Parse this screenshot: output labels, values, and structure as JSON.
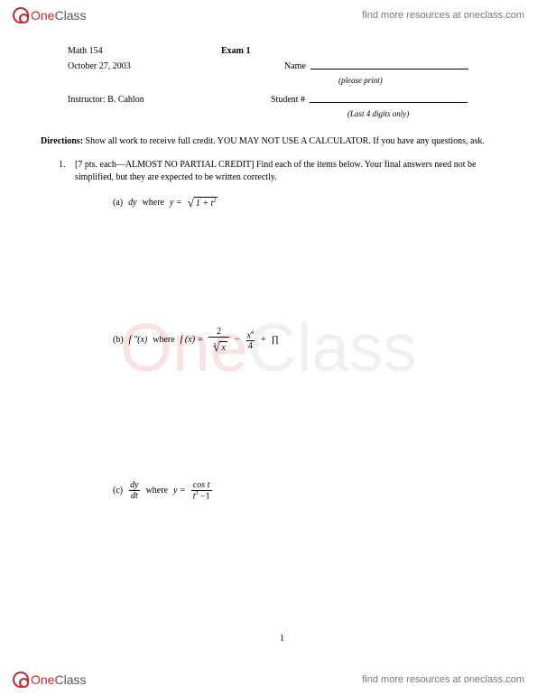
{
  "brand": {
    "one": "One",
    "class": "Class"
  },
  "resourcesLink": "find more resources at oneclass.com",
  "watermark": {
    "one": "One",
    "class": "Class"
  },
  "course": "Math 154",
  "examTitle": "Exam 1",
  "date": "October 27, 2003",
  "nameLabel": "Name",
  "pleasePrint": "(please print)",
  "instructor": "Instructor: B. Cahlon",
  "studentNumLabel": "Student #",
  "lastDigits": "(Last 4 digits only)",
  "directionsLabel": "Directions:",
  "directionsText": " Show all work to receive full credit. YOU MAY NOT USE A CALCULATOR. If you have any questions, ask.",
  "q1num": "1.",
  "q1text": "[7 pts. each—ALMOST NO PARTIAL CREDIT] Find each of the items below. Your final answers need not be simplified, but they are expected to be written correctly.",
  "partA": {
    "label": "(a)",
    "lhs": "dy",
    "where": "where",
    "eq": "y =",
    "radicand": "1 + t",
    "exp": "2"
  },
  "partB": {
    "label": "(b)",
    "lhs": "f ″(x)",
    "where": "where",
    "eq": "f (x) =",
    "frac1num": "2",
    "rootIdx": "3",
    "rootOf": "x",
    "minus": "−",
    "frac2numBase": "x",
    "frac2numExp": "4",
    "frac2den": "4",
    "plus": "+",
    "pi": "∏"
  },
  "partC": {
    "label": "(c)",
    "dyNum": "dy",
    "dyDen": "dt",
    "where": "where",
    "eq": "y =",
    "topFrac": "cos t",
    "botBase": "t",
    "botExp": "3",
    "botRest": " −1"
  },
  "pageNum": "1"
}
